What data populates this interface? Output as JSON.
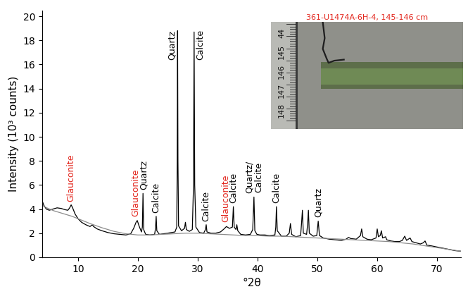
{
  "chart_data": {
    "type": "line",
    "x_label": "°2θ",
    "y_label": "Intensity (10³ counts)",
    "xlim": [
      4,
      74
    ],
    "xticks": [
      10,
      20,
      30,
      40,
      50,
      60,
      70
    ],
    "ylim": [
      0,
      20.5
    ],
    "yticks": [
      0,
      2,
      4,
      6,
      8,
      10,
      12,
      14,
      16,
      18,
      20
    ],
    "grid": false,
    "series": [
      {
        "color": "#000000",
        "x": [
          4.0,
          4.3,
          4.7,
          5.2,
          5.8,
          6.5,
          7.2,
          7.8,
          8.3,
          8.6,
          8.85,
          9.1,
          9.5,
          10.0,
          10.6,
          11.3,
          12.0,
          12.4,
          12.6,
          13.2,
          14.0,
          15.0,
          16.0,
          17.0,
          18.0,
          18.8,
          19.3,
          19.7,
          19.9,
          20.2,
          20.6,
          20.75,
          20.86,
          20.97,
          21.3,
          22.0,
          22.8,
          22.95,
          23.06,
          23.17,
          23.6,
          24.3,
          25.0,
          25.6,
          26.2,
          26.5,
          26.58,
          26.64,
          26.7,
          26.8,
          27.3,
          27.8,
          27.95,
          28.1,
          28.6,
          29.1,
          29.3,
          29.4,
          29.5,
          29.7,
          30.3,
          31.0,
          31.3,
          31.42,
          31.55,
          32.2,
          33.0,
          33.8,
          34.4,
          34.8,
          35.3,
          35.8,
          35.96,
          36.1,
          36.4,
          36.54,
          36.7,
          37.2,
          38.0,
          38.8,
          39.2,
          39.4,
          39.55,
          39.9,
          40.4,
          41.2,
          42.0,
          42.9,
          43.05,
          43.16,
          43.3,
          44.0,
          44.8,
          45.3,
          45.5,
          45.7,
          46.4,
          47.2,
          47.35,
          47.5,
          47.65,
          48.2,
          48.38,
          48.5,
          48.65,
          49.3,
          49.9,
          50.14,
          50.35,
          51.0,
          52.0,
          53.0,
          54.0,
          54.8,
          55.2,
          55.6,
          56.5,
          57.2,
          57.4,
          57.6,
          58.3,
          59.0,
          59.8,
          60.0,
          60.2,
          60.5,
          60.7,
          60.9,
          61.4,
          61.6,
          62.3,
          63.0,
          63.7,
          64.2,
          64.6,
          64.9,
          65.5,
          65.8,
          66.5,
          67.2,
          67.7,
          68.0,
          68.3,
          69.0,
          70.0,
          71.0,
          72.0,
          73.0,
          74.0
        ],
        "values": [
          4.7,
          4.3,
          4.0,
          3.9,
          4.0,
          4.1,
          4.05,
          3.95,
          3.9,
          4.1,
          4.35,
          4.1,
          3.6,
          3.2,
          2.9,
          2.7,
          2.55,
          2.7,
          2.55,
          2.35,
          2.2,
          2.05,
          1.95,
          1.9,
          1.85,
          1.95,
          2.4,
          2.9,
          3.05,
          2.6,
          2.1,
          2.5,
          5.3,
          2.3,
          1.9,
          1.85,
          1.9,
          2.4,
          3.4,
          2.2,
          1.9,
          1.95,
          2.0,
          2.05,
          2.1,
          2.5,
          8.0,
          18.8,
          8.0,
          2.6,
          2.2,
          2.4,
          2.9,
          2.3,
          2.15,
          2.3,
          6.0,
          18.7,
          6.0,
          2.5,
          2.05,
          2.0,
          2.3,
          2.7,
          2.1,
          2.0,
          2.0,
          2.1,
          2.35,
          2.55,
          2.4,
          2.5,
          4.2,
          2.5,
          2.3,
          2.7,
          2.2,
          1.9,
          1.85,
          1.9,
          2.3,
          5.0,
          2.2,
          1.9,
          1.85,
          1.85,
          1.8,
          1.85,
          2.5,
          4.2,
          2.2,
          1.75,
          1.75,
          2.0,
          2.8,
          1.9,
          1.7,
          1.8,
          2.8,
          3.9,
          2.0,
          1.9,
          2.8,
          3.9,
          2.0,
          1.75,
          1.8,
          3.0,
          1.8,
          1.6,
          1.5,
          1.45,
          1.4,
          1.5,
          1.65,
          1.55,
          1.5,
          1.8,
          2.35,
          1.7,
          1.5,
          1.45,
          1.6,
          2.35,
          1.7,
          1.8,
          2.2,
          1.6,
          1.7,
          1.45,
          1.35,
          1.3,
          1.3,
          1.4,
          1.75,
          1.4,
          1.6,
          1.3,
          1.2,
          1.1,
          1.2,
          1.35,
          1.0,
          0.95,
          0.85,
          0.75,
          0.65,
          0.55,
          0.5
        ]
      },
      {
        "color": "#8c8c8c",
        "x": [
          4,
          5,
          6,
          7,
          8,
          9,
          10,
          11,
          12,
          14,
          16,
          18,
          20,
          22,
          24,
          26,
          28,
          30,
          32,
          34,
          36,
          38,
          40,
          42,
          44,
          46,
          48,
          50,
          52,
          54,
          56,
          58,
          60,
          62,
          64,
          66,
          68,
          70,
          72,
          74
        ],
        "values": [
          4.3,
          4.05,
          3.85,
          3.7,
          3.55,
          3.4,
          3.2,
          3.0,
          2.8,
          2.45,
          2.15,
          1.95,
          1.85,
          1.85,
          1.9,
          1.95,
          2.0,
          2.0,
          1.95,
          1.9,
          1.85,
          1.8,
          1.8,
          1.75,
          1.75,
          1.7,
          1.65,
          1.6,
          1.55,
          1.5,
          1.45,
          1.4,
          1.35,
          1.3,
          1.2,
          1.1,
          0.95,
          0.8,
          0.65,
          0.5
        ]
      }
    ],
    "annotations": [
      {
        "text": "Glauconite",
        "x": 8.8,
        "y": 4.6,
        "color": "#e3241b"
      },
      {
        "text": "Glauconite",
        "x": 19.6,
        "y": 3.4,
        "color": "#e3241b"
      },
      {
        "text": "Quartz",
        "x": 20.95,
        "y": 5.6,
        "color": "#000000"
      },
      {
        "text": "Calcite",
        "x": 23.06,
        "y": 3.7,
        "color": "#000000"
      },
      {
        "text": "Quartz",
        "x": 25.7,
        "y": 16.4,
        "color": "#000000"
      },
      {
        "text": "Calcite",
        "x": 30.4,
        "y": 16.4,
        "color": "#000000"
      },
      {
        "text": "Calcite",
        "x": 31.42,
        "y": 3.0,
        "color": "#000000"
      },
      {
        "text": "Glauconite",
        "x": 34.7,
        "y": 2.9,
        "color": "#e3241b"
      },
      {
        "text": "Calcite",
        "x": 36.0,
        "y": 4.5,
        "color": "#000000"
      },
      {
        "text": "Quartz/\nCalcite",
        "x": 39.4,
        "y": 5.3,
        "color": "#000000"
      },
      {
        "text": "Calcite",
        "x": 43.16,
        "y": 4.5,
        "color": "#000000"
      },
      {
        "text": "Quartz",
        "x": 50.14,
        "y": 3.3,
        "color": "#000000"
      }
    ],
    "photo": {
      "title": "361-U1474A-6H-4, 145-146 cm",
      "title_color": "#e3241b",
      "ruler_labels": [
        "44",
        "145",
        "146",
        "147",
        "148"
      ]
    }
  }
}
